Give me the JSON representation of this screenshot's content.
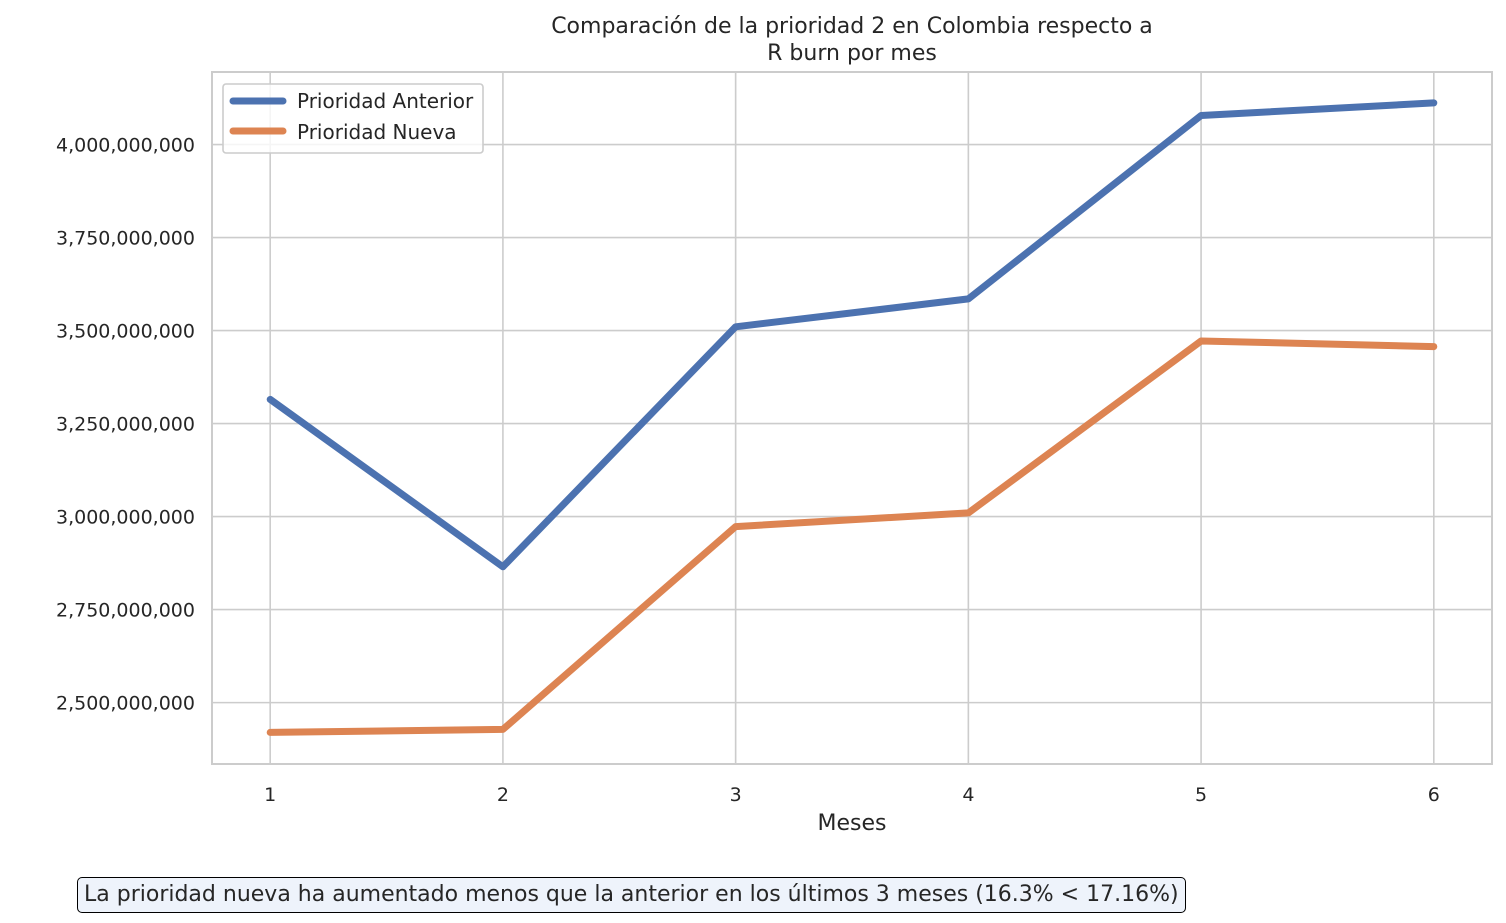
{
  "chart_data": {
    "type": "line",
    "title_lines": [
      "Comparación de la prioridad 2 en Colombia respecto a",
      "R burn por mes"
    ],
    "xlabel": "Meses",
    "ylabel": "",
    "x": [
      1,
      2,
      3,
      4,
      5,
      6
    ],
    "x_tick_labels": [
      "1",
      "2",
      "3",
      "4",
      "5",
      "6"
    ],
    "y_ticks": [
      2500000000,
      2750000000,
      3000000000,
      3250000000,
      3500000000,
      3750000000,
      4000000000
    ],
    "y_tick_labels": [
      "2,500,000,000",
      "2,750,000,000",
      "3,000,000,000",
      "3,250,000,000",
      "3,500,000,000",
      "3,750,000,000",
      "4,000,000,000"
    ],
    "xlim": [
      0.75,
      6.25
    ],
    "ylim": [
      2335000000,
      4195000000
    ],
    "grid": true,
    "legend_position": "top-left",
    "series": [
      {
        "name": "Prioridad Anterior",
        "color": "#4c72b0",
        "values": [
          3315000000,
          2865000000,
          3510000000,
          3585000000,
          4078000000,
          4112000000
        ]
      },
      {
        "name": "Prioridad Nueva",
        "color": "#dd8452",
        "values": [
          2420000000,
          2428000000,
          2973000000,
          3010000000,
          3472000000,
          3457000000
        ]
      }
    ],
    "annotation": "La prioridad nueva ha aumentado menos que la anterior en los últimos 3 meses (16.3% < 17.16%)"
  }
}
